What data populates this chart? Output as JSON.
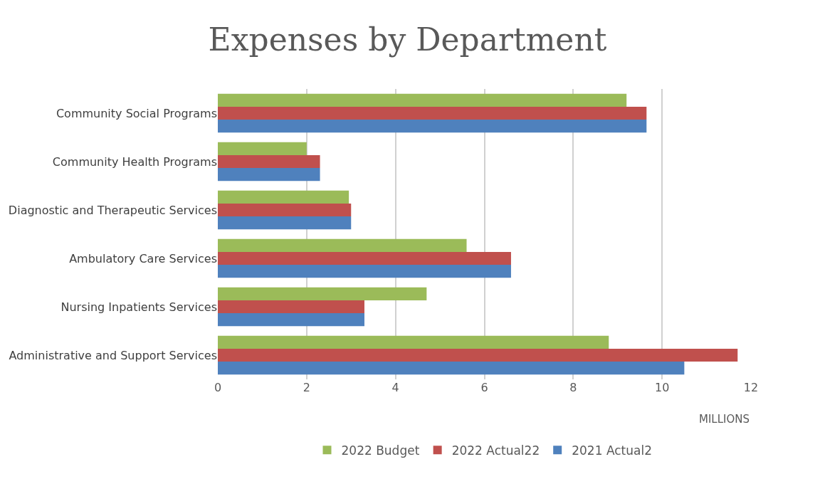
{
  "chart_data": {
    "type": "bar",
    "orientation": "horizontal",
    "title": "Expenses by Department",
    "xlabel": "MILLIONS",
    "categories": [
      "Community Social Programs",
      "Community Health Programs",
      "Diagnostic and Therapeutic Services",
      "Ambulatory Care Services",
      "Nursing Inpatients Services",
      "Administrative and Support Services"
    ],
    "series": [
      {
        "name": "2022 Budget",
        "color": "#9bbb59",
        "values": [
          9.2,
          2.0,
          2.95,
          5.6,
          4.7,
          8.8
        ]
      },
      {
        "name": "2022 Actual22",
        "color": "#c0504d",
        "values": [
          9.65,
          2.3,
          3.0,
          6.6,
          3.3,
          11.7
        ]
      },
      {
        "name": "2021 Actual2",
        "color": "#4f81bd",
        "values": [
          9.65,
          2.3,
          3.0,
          6.6,
          3.3,
          10.5
        ]
      }
    ],
    "xlim": [
      0,
      12
    ],
    "xticks": [
      0,
      2,
      4,
      6,
      8,
      10,
      12
    ],
    "grid": "x",
    "legend": "bottom"
  }
}
